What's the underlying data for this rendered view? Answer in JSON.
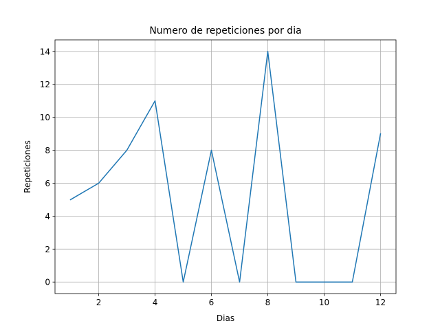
{
  "chart_data": {
    "type": "line",
    "title": "Numero de repeticiones por dia",
    "xlabel": "Dias",
    "ylabel": "Repeticiones",
    "xlim": [
      0.45,
      12.55
    ],
    "ylim": [
      -0.7,
      14.7
    ],
    "xticks": [
      2,
      4,
      6,
      8,
      10,
      12
    ],
    "yticks": [
      0,
      2,
      4,
      6,
      8,
      10,
      12,
      14
    ],
    "grid": true,
    "series": [
      {
        "color": "#1f77b4",
        "x": [
          1,
          2,
          3,
          4,
          5,
          6,
          7,
          8,
          9,
          10,
          11,
          12
        ],
        "y": [
          5,
          6,
          8,
          11,
          0,
          8,
          0,
          14,
          0,
          0,
          0,
          9
        ]
      }
    ]
  }
}
